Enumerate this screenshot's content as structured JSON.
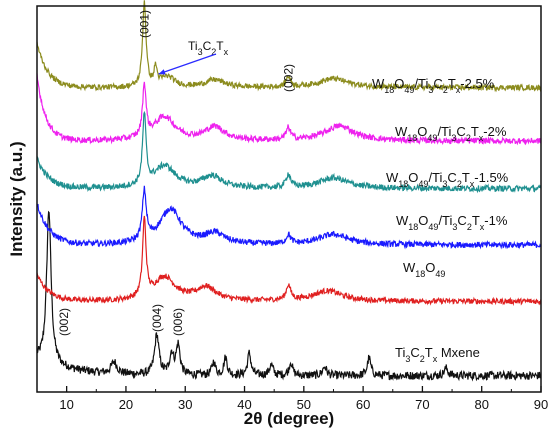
{
  "chart_data": {
    "type": "line",
    "xlabel": "2θ (degree)",
    "ylabel": "Intensity (a.u.)",
    "xlim": [
      5,
      90
    ],
    "x_ticks": [
      10,
      20,
      30,
      40,
      50,
      60,
      70,
      80,
      90
    ],
    "grid": false,
    "series": [
      {
        "name": "Ti3C2Tx Mxene",
        "label_parts": [
          {
            "t": "Ti",
            "s": "n"
          },
          {
            "t": "3",
            "s": "sub"
          },
          {
            "t": "C",
            "s": "n"
          },
          {
            "t": "2",
            "s": "sub"
          },
          {
            "t": "T",
            "s": "n"
          },
          {
            "t": "x",
            "s": "sub"
          },
          {
            "t": " Mxene",
            "s": "n"
          }
        ],
        "color": "#111111",
        "baseline": 0.55,
        "bg_amp": 0.55,
        "bg_decay": 6,
        "noise": 0.14,
        "peaks": [
          {
            "x": 7.0,
            "h": 5.2,
            "w": 0.45
          },
          {
            "x": 18.0,
            "h": 0.4,
            "w": 0.6
          },
          {
            "x": 25.2,
            "h": 1.35,
            "w": 0.45
          },
          {
            "x": 27.7,
            "h": 0.7,
            "w": 0.4
          },
          {
            "x": 28.8,
            "h": 1.0,
            "w": 0.4
          },
          {
            "x": 34.8,
            "h": 0.45,
            "w": 0.35
          },
          {
            "x": 36.8,
            "h": 0.6,
            "w": 0.35
          },
          {
            "x": 40.8,
            "h": 0.75,
            "w": 0.35
          },
          {
            "x": 44.5,
            "h": 0.35,
            "w": 0.4
          },
          {
            "x": 47.8,
            "h": 0.45,
            "w": 0.35
          },
          {
            "x": 53.5,
            "h": 0.3,
            "w": 0.4
          },
          {
            "x": 61.0,
            "h": 0.6,
            "w": 0.35
          },
          {
            "x": 74.0,
            "h": 0.25,
            "w": 0.4
          }
        ]
      },
      {
        "name": "W18O49",
        "label_parts": [
          {
            "t": "W",
            "s": "n"
          },
          {
            "t": "18",
            "s": "sub"
          },
          {
            "t": "O",
            "s": "n"
          },
          {
            "t": "49",
            "s": "sub"
          }
        ],
        "color": "#e02020",
        "baseline": 3.05,
        "bg_amp": 0.9,
        "bg_decay": 2,
        "noise": 0.09,
        "peaks": [
          {
            "x": 23.1,
            "h": 2.6,
            "w": 0.35
          },
          {
            "x": 26.5,
            "h": 0.8,
            "w": 2.2
          },
          {
            "x": 33.5,
            "h": 0.45,
            "w": 2.0
          },
          {
            "x": 47.4,
            "h": 0.5,
            "w": 0.45
          },
          {
            "x": 54.0,
            "h": 0.35,
            "w": 3.0
          }
        ]
      },
      {
        "name": "W18O49/Ti3C2Tx-1%",
        "label_parts": [
          {
            "t": "W",
            "s": "n"
          },
          {
            "t": "18",
            "s": "sub"
          },
          {
            "t": "O",
            "s": "n"
          },
          {
            "t": "49",
            "s": "sub"
          },
          {
            "t": "/Ti",
            "s": "n"
          },
          {
            "t": "3",
            "s": "sub"
          },
          {
            "t": "C",
            "s": "n"
          },
          {
            "t": "2",
            "s": "sub"
          },
          {
            "t": "T",
            "s": "n"
          },
          {
            "t": "x",
            "s": "sub"
          },
          {
            "t": "-1%",
            "s": "n"
          }
        ],
        "color": "#1a1aff",
        "baseline": 4.95,
        "bg_amp": 1.4,
        "bg_decay": 2,
        "noise": 0.1,
        "peaks": [
          {
            "x": 23.1,
            "h": 1.65,
            "w": 0.4
          },
          {
            "x": 27.5,
            "h": 1.2,
            "w": 2.2
          },
          {
            "x": 35.0,
            "h": 0.35,
            "w": 2.0
          },
          {
            "x": 47.4,
            "h": 0.3,
            "w": 0.45
          },
          {
            "x": 55.0,
            "h": 0.35,
            "w": 3.0
          }
        ]
      },
      {
        "name": "W18O49/Ti3C2Tx-1.5%",
        "label_parts": [
          {
            "t": "W",
            "s": "n"
          },
          {
            "t": "18",
            "s": "sub"
          },
          {
            "t": "O",
            "s": "n"
          },
          {
            "t": "49",
            "s": "sub"
          },
          {
            "t": "/Ti",
            "s": "n"
          },
          {
            "t": "3",
            "s": "sub"
          },
          {
            "t": "C",
            "s": "n"
          },
          {
            "t": "2",
            "s": "sub"
          },
          {
            "t": "T",
            "s": "n"
          },
          {
            "t": "x",
            "s": "sub"
          },
          {
            "t": "-1.5%",
            "s": "n"
          }
        ],
        "color": "#1f9090",
        "baseline": 6.85,
        "bg_amp": 1.0,
        "bg_decay": 2,
        "noise": 0.1,
        "peaks": [
          {
            "x": 23.1,
            "h": 2.35,
            "w": 0.35
          },
          {
            "x": 26.5,
            "h": 0.75,
            "w": 2.2
          },
          {
            "x": 34.5,
            "h": 0.4,
            "w": 2.0
          },
          {
            "x": 47.4,
            "h": 0.45,
            "w": 0.45
          },
          {
            "x": 55.0,
            "h": 0.35,
            "w": 3.0
          }
        ]
      },
      {
        "name": "W18O49/Ti3C2Tx-2%",
        "label_parts": [
          {
            "t": "W",
            "s": "n"
          },
          {
            "t": "18",
            "s": "sub"
          },
          {
            "t": "O",
            "s": "n"
          },
          {
            "t": "49",
            "s": "sub"
          },
          {
            "t": "/Ti",
            "s": "n"
          },
          {
            "t": "3",
            "s": "sub"
          },
          {
            "t": "C",
            "s": "n"
          },
          {
            "t": "2",
            "s": "sub"
          },
          {
            "t": "T",
            "s": "n"
          },
          {
            "t": "x",
            "s": "sub"
          },
          {
            "t": "-2%",
            "s": "n"
          }
        ],
        "color": "#ee22ee",
        "baseline": 8.45,
        "bg_amp": 2.2,
        "bg_decay": 1.5,
        "noise": 0.1,
        "peaks": [
          {
            "x": 23.1,
            "h": 1.75,
            "w": 0.35
          },
          {
            "x": 26.5,
            "h": 0.8,
            "w": 2.2
          },
          {
            "x": 35.0,
            "h": 0.45,
            "w": 2.0
          },
          {
            "x": 47.4,
            "h": 0.4,
            "w": 0.45
          },
          {
            "x": 56.0,
            "h": 0.5,
            "w": 3.0
          }
        ]
      },
      {
        "name": "W18O49/Ti3C2Tx-2.5%",
        "label_parts": [
          {
            "t": "W",
            "s": "n"
          },
          {
            "t": "18",
            "s": "sub"
          },
          {
            "t": "O",
            "s": "n"
          },
          {
            "t": "49",
            "s": "sub"
          },
          {
            "t": "/Ti",
            "s": "n"
          },
          {
            "t": "3",
            "s": "sub"
          },
          {
            "t": "C",
            "s": "n"
          },
          {
            "t": "2",
            "s": "sub"
          },
          {
            "t": "T",
            "s": "n"
          },
          {
            "t": "x",
            "s": "sub"
          },
          {
            "t": "-2.5%",
            "s": "n"
          }
        ],
        "color": "#8c8c1e",
        "baseline": 10.25,
        "bg_amp": 1.5,
        "bg_decay": 1.8,
        "noise": 0.09,
        "peaks": [
          {
            "x": 23.1,
            "h": 2.85,
            "w": 0.35
          },
          {
            "x": 25.0,
            "h": 0.6,
            "w": 0.3
          },
          {
            "x": 27.0,
            "h": 0.35,
            "w": 1.5
          },
          {
            "x": 35.0,
            "h": 0.25,
            "w": 2.0
          },
          {
            "x": 47.4,
            "h": 0.35,
            "w": 0.45
          },
          {
            "x": 55.0,
            "h": 0.3,
            "w": 3.0
          }
        ]
      }
    ],
    "annotations": [
      {
        "text": "(001)",
        "x": 23.1,
        "rotate": true
      },
      {
        "text": "(002)",
        "x": 47.4,
        "rotate": true
      },
      {
        "text": "(002)",
        "x": 7.0,
        "rotate": true
      },
      {
        "text": "(004)",
        "x": 25.2,
        "rotate": true
      },
      {
        "text": "(006)",
        "x": 28.8,
        "rotate": true
      },
      {
        "text": "Ti3C2Tx",
        "x": 25.0,
        "rotate": false,
        "label_parts": [
          {
            "t": "Ti",
            "s": "n"
          },
          {
            "t": "3",
            "s": "sub"
          },
          {
            "t": "C",
            "s": "n"
          },
          {
            "t": "2",
            "s": "sub"
          },
          {
            "t": "T",
            "s": "n"
          },
          {
            "t": "x",
            "s": "sub"
          }
        ],
        "arrow_color": "#2a2aff"
      }
    ]
  }
}
